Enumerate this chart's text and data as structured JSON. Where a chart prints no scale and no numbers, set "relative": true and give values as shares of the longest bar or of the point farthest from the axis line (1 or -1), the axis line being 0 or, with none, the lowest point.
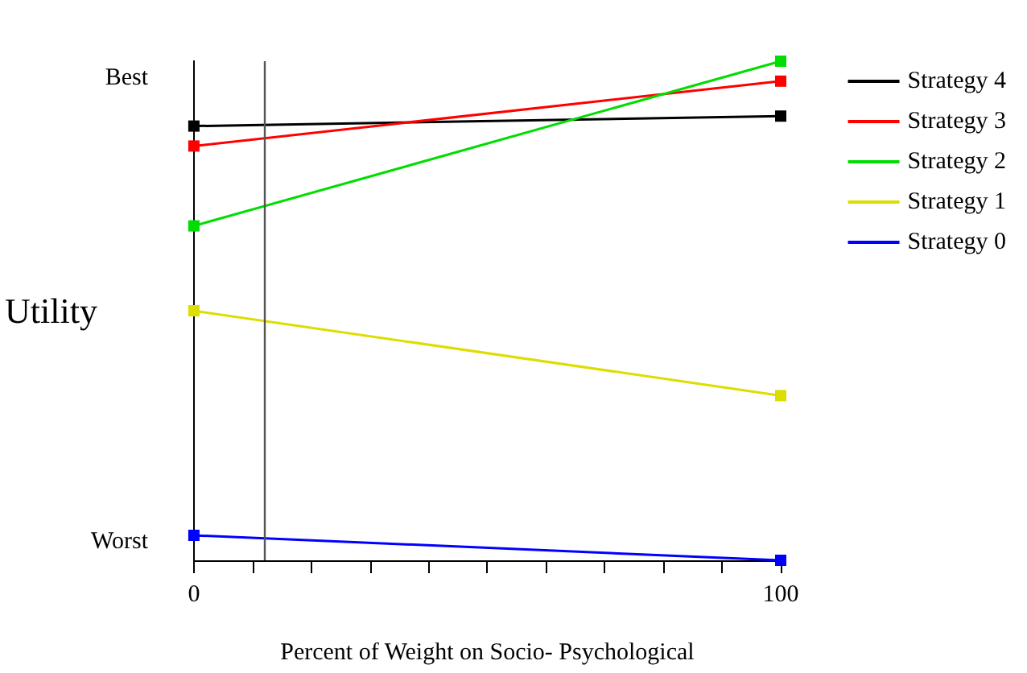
{
  "chart_data": {
    "type": "line",
    "xlabel": "Percent of Weight on Socio- Psychological",
    "ylabel": "Utility",
    "x": [
      0,
      100
    ],
    "relative": true,
    "series": [
      {
        "name": "Strategy 4",
        "color": "#000000",
        "values": [
          0.87,
          0.89
        ]
      },
      {
        "name": "Strategy 3",
        "color": "#ff0000",
        "values": [
          0.83,
          0.96
        ]
      },
      {
        "name": "Strategy 2",
        "color": "#00dd00",
        "values": [
          0.67,
          1
        ]
      },
      {
        "name": "Strategy 1",
        "color": "#dddd00",
        "values": [
          0.5,
          0.33
        ]
      },
      {
        "name": "Strategy 0",
        "color": "#0000ff",
        "values": [
          0.05,
          0
        ]
      }
    ],
    "xlim": [
      0,
      100
    ],
    "xticks": [
      0,
      {
        "value": 10,
        "label": null
      },
      {
        "value": 20,
        "label": null
      },
      {
        "value": 30,
        "label": null
      },
      {
        "value": 40,
        "label": null
      },
      {
        "value": 50,
        "label": null
      },
      {
        "value": 60,
        "label": null
      },
      {
        "value": 70,
        "label": null
      },
      {
        "value": 80,
        "label": null
      },
      {
        "value": 90,
        "label": null
      },
      100
    ],
    "annotations": [
      "Best",
      "Worst"
    ],
    "ref_lines": [
      {
        "axis": "x",
        "value": 12,
        "color": "#555555"
      }
    ],
    "marker": "square",
    "legend": "top right",
    "grid": false
  }
}
